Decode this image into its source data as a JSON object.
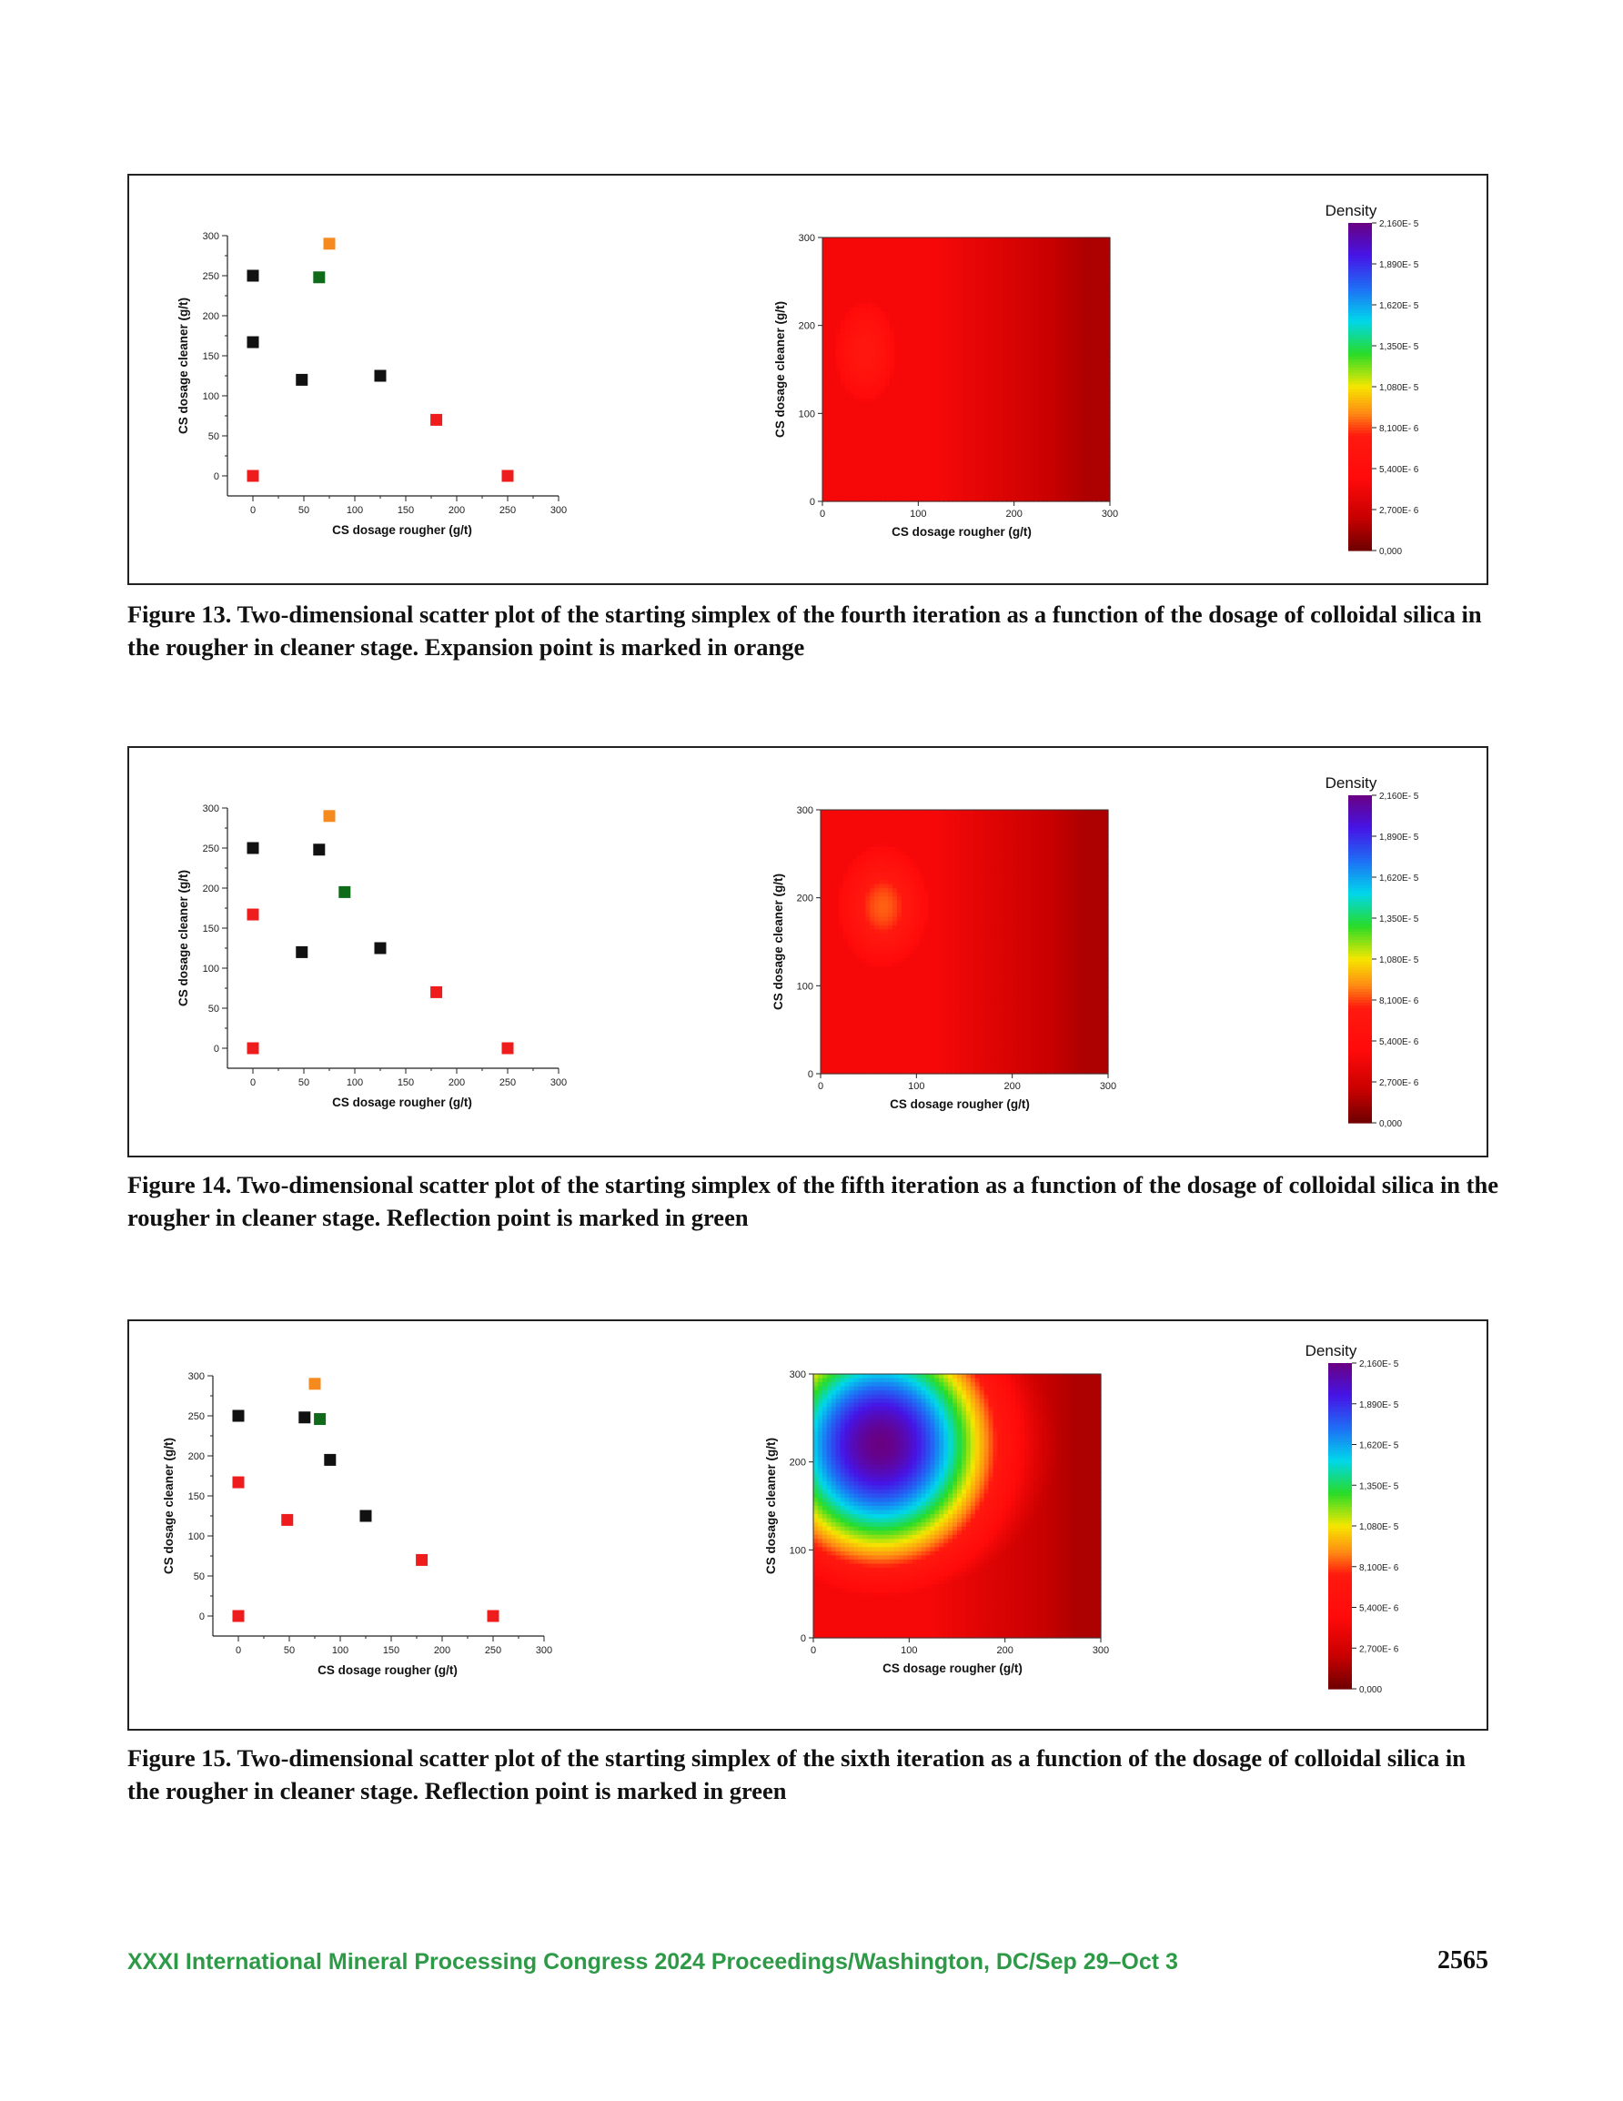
{
  "figures": [
    {
      "caption": "Figure 13.  Two-dimensional scatter plot of the starting simplex of the fourth iteration as a function of the dosage of colloidal silica in the rougher in cleaner stage. Expansion point is marked in orange",
      "chart_data": [
        {
          "type": "scatter",
          "xlabel": "CS dosage rougher (g/t)",
          "ylabel": "CS dosage cleaner (g/t)",
          "xlim": [
            -25,
            300
          ],
          "ylim": [
            -25,
            300
          ],
          "xticks": [
            "0",
            "50",
            "100",
            "150",
            "200",
            "250",
            "300"
          ],
          "yticks": [
            "0",
            "50",
            "100",
            "150",
            "200",
            "250",
            "300"
          ],
          "colors": {
            "black": "#111111",
            "red": "#ee1c1c",
            "green": "#0f6b1a",
            "orange": "#f58a1f"
          },
          "points": [
            {
              "x": 0,
              "y": 250,
              "color": "black"
            },
            {
              "x": 0,
              "y": 167,
              "color": "black"
            },
            {
              "x": 48,
              "y": 120,
              "color": "black"
            },
            {
              "x": 125,
              "y": 125,
              "color": "black"
            },
            {
              "x": 0,
              "y": 0,
              "color": "red"
            },
            {
              "x": 180,
              "y": 70,
              "color": "red"
            },
            {
              "x": 250,
              "y": 0,
              "color": "red"
            },
            {
              "x": 65,
              "y": 248,
              "color": "green"
            },
            {
              "x": 75,
              "y": 290,
              "color": "orange"
            }
          ]
        },
        {
          "type": "heatmap",
          "xlabel": "CS dosage rougher (g/t)",
          "ylabel": "CS dosage cleaner (g/t)",
          "xlim": [
            0,
            300
          ],
          "ylim": [
            0,
            300
          ],
          "xticks": [
            "0",
            "100",
            "200",
            "300"
          ],
          "yticks": [
            "0",
            "100",
            "200",
            "300"
          ],
          "hotspot": {
            "x": 45,
            "y": 170,
            "rx": 50,
            "ry": 90,
            "peak": 7.2e-06
          },
          "colorbar": {
            "title": "Density",
            "max": 2.16e-05,
            "ticks": [
              "2,160E- 5",
              "1,890E- 5",
              "1,620E- 5",
              "1,350E- 5",
              "1,080E- 5",
              "8,100E- 6",
              "5,400E- 6",
              "2,700E- 6",
              "0,000"
            ]
          }
        }
      ]
    },
    {
      "caption": "Figure 14.  Two-dimensional scatter plot of the starting simplex of the fifth iteration as a function of the dosage of colloidal silica in the rougher in cleaner stage. Reflection point is marked in green",
      "chart_data": [
        {
          "type": "scatter",
          "xlabel": "CS dosage rougher (g/t)",
          "ylabel": "CS dosage cleaner (g/t)",
          "xlim": [
            -25,
            300
          ],
          "ylim": [
            -25,
            300
          ],
          "xticks": [
            "0",
            "50",
            "100",
            "150",
            "200",
            "250",
            "300"
          ],
          "yticks": [
            "0",
            "50",
            "100",
            "150",
            "200",
            "250",
            "300"
          ],
          "colors": {
            "black": "#111111",
            "red": "#ee1c1c",
            "green": "#0f6b1a",
            "orange": "#f58a1f"
          },
          "points": [
            {
              "x": 0,
              "y": 250,
              "color": "black"
            },
            {
              "x": 65,
              "y": 248,
              "color": "black"
            },
            {
              "x": 48,
              "y": 120,
              "color": "black"
            },
            {
              "x": 125,
              "y": 125,
              "color": "black"
            },
            {
              "x": 0,
              "y": 167,
              "color": "red"
            },
            {
              "x": 0,
              "y": 0,
              "color": "red"
            },
            {
              "x": 180,
              "y": 70,
              "color": "red"
            },
            {
              "x": 250,
              "y": 0,
              "color": "red"
            },
            {
              "x": 90,
              "y": 195,
              "color": "green"
            },
            {
              "x": 75,
              "y": 290,
              "color": "orange"
            }
          ]
        },
        {
          "type": "heatmap",
          "xlabel": "CS dosage rougher (g/t)",
          "ylabel": "CS dosage cleaner (g/t)",
          "xlim": [
            0,
            300
          ],
          "ylim": [
            0,
            300
          ],
          "xticks": [
            "0",
            "100",
            "200",
            "300"
          ],
          "yticks": [
            "0",
            "100",
            "200",
            "300"
          ],
          "hotspot": {
            "x": 65,
            "y": 190,
            "rx": 65,
            "ry": 95,
            "peak": 8.5e-06
          },
          "colorbar": {
            "title": "Density",
            "max": 2.16e-05,
            "ticks": [
              "2,160E- 5",
              "1,890E- 5",
              "1,620E- 5",
              "1,350E- 5",
              "1,080E- 5",
              "8,100E- 6",
              "5,400E- 6",
              "2,700E- 6",
              "0,000"
            ]
          }
        }
      ]
    },
    {
      "caption": "Figure 15.  Two-dimensional scatter plot of the starting simplex of the sixth iteration as a function of the dosage of colloidal silica in the rougher in cleaner stage. Reflection point is marked in green",
      "chart_data": [
        {
          "type": "scatter",
          "xlabel": "CS dosage rougher (g/t)",
          "ylabel": "CS dosage cleaner (g/t)",
          "xlim": [
            -25,
            300
          ],
          "ylim": [
            -25,
            300
          ],
          "xticks": [
            "0",
            "50",
            "100",
            "150",
            "200",
            "250",
            "300"
          ],
          "yticks": [
            "0",
            "50",
            "100",
            "150",
            "200",
            "250",
            "300"
          ],
          "colors": {
            "black": "#111111",
            "red": "#ee1c1c",
            "green": "#0f6b1a",
            "orange": "#f58a1f"
          },
          "points": [
            {
              "x": 0,
              "y": 250,
              "color": "black"
            },
            {
              "x": 65,
              "y": 248,
              "color": "black"
            },
            {
              "x": 90,
              "y": 195,
              "color": "black"
            },
            {
              "x": 125,
              "y": 125,
              "color": "black"
            },
            {
              "x": 0,
              "y": 167,
              "color": "red"
            },
            {
              "x": 48,
              "y": 120,
              "color": "red"
            },
            {
              "x": 0,
              "y": 0,
              "color": "red"
            },
            {
              "x": 180,
              "y": 70,
              "color": "red"
            },
            {
              "x": 250,
              "y": 0,
              "color": "red"
            },
            {
              "x": 80,
              "y": 246,
              "color": "green"
            },
            {
              "x": 75,
              "y": 290,
              "color": "orange"
            }
          ]
        },
        {
          "type": "heatmap",
          "xlabel": "CS dosage rougher (g/t)",
          "ylabel": "CS dosage cleaner (g/t)",
          "xlim": [
            0,
            300
          ],
          "ylim": [
            0,
            300
          ],
          "xticks": [
            "0",
            "100",
            "200",
            "300"
          ],
          "yticks": [
            "0",
            "100",
            "200",
            "300"
          ],
          "hotspot": {
            "x": 70,
            "y": 220,
            "rx": 130,
            "ry": 150,
            "peak": 2.16e-05
          },
          "colorbar": {
            "title": "Density",
            "max": 2.16e-05,
            "ticks": [
              "2,160E- 5",
              "1,890E- 5",
              "1,620E- 5",
              "1,350E- 5",
              "1,080E- 5",
              "8,100E- 6",
              "5,400E- 6",
              "2,700E- 6",
              "0,000"
            ]
          }
        }
      ]
    }
  ],
  "footer": {
    "left": "XXXI International Mineral Processing Congress 2024 Proceedings/Washington, DC/Sep 29–Oct 3",
    "page": "2565"
  }
}
